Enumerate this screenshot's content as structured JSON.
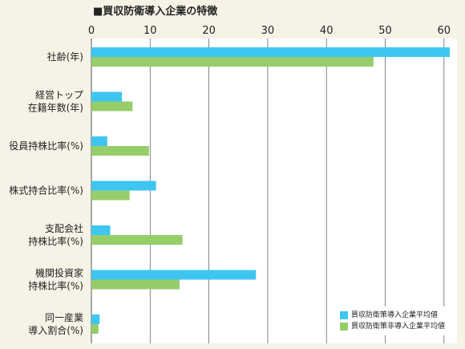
{
  "title": "■買収防衛導入企業の特徴",
  "chart_data": {
    "type": "bar",
    "orientation": "horizontal",
    "title": "■買収防衛導入企業の特徴",
    "xlim": [
      0,
      62
    ],
    "xticks": [
      0,
      10,
      20,
      30,
      40,
      50,
      60
    ],
    "grid": true,
    "legend_position": "bottom-right",
    "categories": [
      [
        "社齢(年)"
      ],
      [
        "経営トップ",
        "在籍年数(年)"
      ],
      [
        "役員持株比率(%)"
      ],
      [
        "株式持合比率(%)"
      ],
      [
        "支配会社",
        "持株比率(%)"
      ],
      [
        "機関投資家",
        "持株比率(%)"
      ],
      [
        "同一産業",
        "導入割合(%)"
      ]
    ],
    "series": [
      {
        "name": "買収防衛策導入企業平均値",
        "color": "#3ec6f0",
        "values": [
          61,
          5.2,
          2.7,
          11,
          3.2,
          28,
          1.4
        ]
      },
      {
        "name": "買収防衛策非導入企業平均値",
        "color": "#96cd6b",
        "values": [
          48,
          7,
          9.8,
          6.5,
          15.5,
          15,
          1.2
        ]
      }
    ]
  }
}
